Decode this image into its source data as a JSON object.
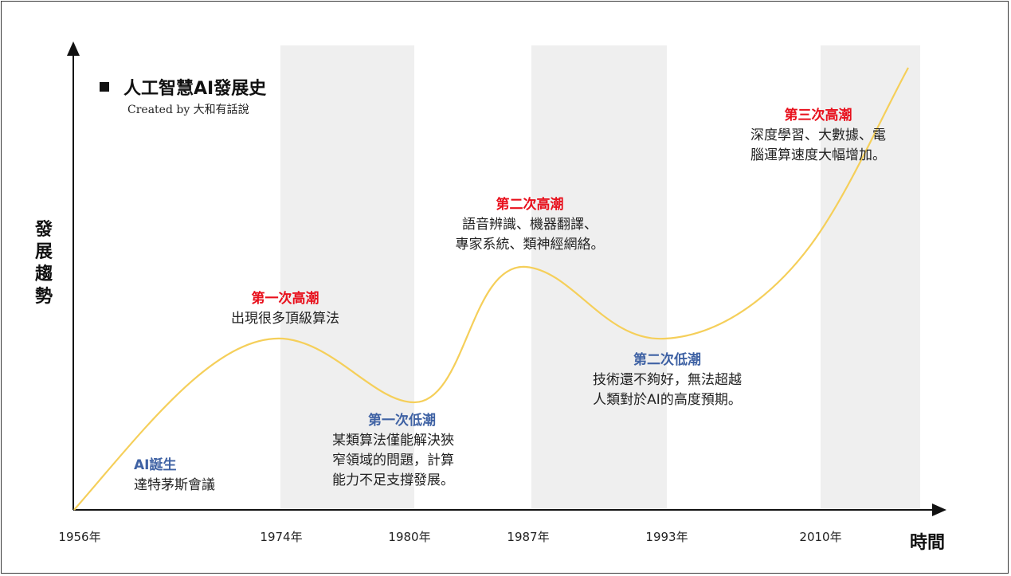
{
  "title": "人工智慧AI發展史",
  "credit": "Created by 大和有話說",
  "y_axis_label": [
    "發",
    "展",
    "趨",
    "勢"
  ],
  "x_axis_label": "時間",
  "ticks": [
    "1956年",
    "1974年",
    "1980年",
    "1987年",
    "1993年",
    "2010年"
  ],
  "colors": {
    "peak": "#e8101c",
    "trough": "#3f62a4",
    "curve": "#f5cf5a",
    "band": "#efefef"
  },
  "annotations": {
    "birth": {
      "title": "AI誕生",
      "lines": [
        "達特茅斯會議"
      ]
    },
    "first_peak": {
      "title": "第一次高潮",
      "lines": [
        "出現很多頂級算法"
      ]
    },
    "first_trough": {
      "title": "第一次低潮",
      "lines": [
        "某類算法僅能解決狹",
        "窄領域的問題，計算",
        "能力不足支撐發展。"
      ]
    },
    "second_peak": {
      "title": "第二次高潮",
      "lines": [
        "語音辨識、機器翻譯、",
        "專家系統、類神經網絡。"
      ]
    },
    "second_trough": {
      "title": "第二次低潮",
      "lines": [
        "技術還不夠好，無法超越",
        "人類對於AI的高度預期。"
      ]
    },
    "third_peak": {
      "title": "第三次高潮",
      "lines": [
        "深度學習、大數據、電",
        "腦運算速度大幅增加。"
      ]
    }
  }
}
